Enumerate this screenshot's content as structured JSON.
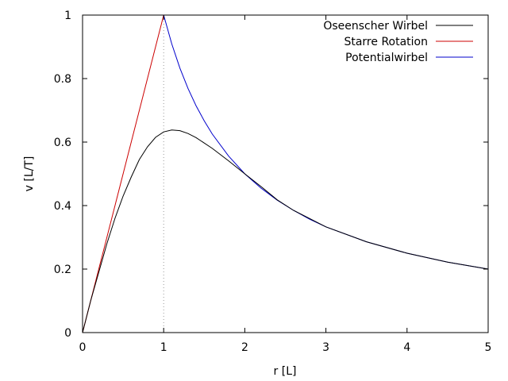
{
  "chart_data": {
    "type": "line",
    "xlabel": "r [L]",
    "ylabel": "v [L/T]",
    "xlim": [
      0,
      5
    ],
    "ylim": [
      0,
      1
    ],
    "x_ticks": [
      "0",
      "1",
      "2",
      "3",
      "4",
      "5"
    ],
    "y_ticks": [
      "0",
      "0.2",
      "0.4",
      "0.6",
      "0.8",
      "1"
    ],
    "grid": false,
    "legend_position": "top-right",
    "reference_line": {
      "x": 1,
      "style": "dotted",
      "color": "#9a9a9a"
    },
    "series": [
      {
        "name": "Oseenscher Wirbel",
        "color": "#000000",
        "points": [
          [
            0,
            0
          ],
          [
            0.1,
            0.1
          ],
          [
            0.2,
            0.19
          ],
          [
            0.3,
            0.28
          ],
          [
            0.4,
            0.36
          ],
          [
            0.5,
            0.43
          ],
          [
            0.6,
            0.49
          ],
          [
            0.7,
            0.545
          ],
          [
            0.8,
            0.585
          ],
          [
            0.9,
            0.615
          ],
          [
            1.0,
            0.632
          ],
          [
            1.1,
            0.638
          ],
          [
            1.2,
            0.636
          ],
          [
            1.3,
            0.627
          ],
          [
            1.4,
            0.614
          ],
          [
            1.6,
            0.58
          ],
          [
            1.8,
            0.541
          ],
          [
            2.0,
            0.5
          ],
          [
            2.2,
            0.46
          ],
          [
            2.4,
            0.418
          ],
          [
            2.6,
            0.385
          ],
          [
            3.0,
            0.333
          ],
          [
            3.5,
            0.286
          ],
          [
            4.0,
            0.25
          ],
          [
            4.5,
            0.222
          ],
          [
            5.0,
            0.2
          ]
        ]
      },
      {
        "name": "Starre Rotation",
        "color": "#cc0000",
        "points": [
          [
            0,
            0
          ],
          [
            1,
            1
          ]
        ]
      },
      {
        "name": "Potentialwirbel",
        "color": "#0000cc",
        "points": [
          [
            1.0,
            1.0
          ],
          [
            1.1,
            0.909
          ],
          [
            1.2,
            0.833
          ],
          [
            1.3,
            0.769
          ],
          [
            1.4,
            0.714
          ],
          [
            1.5,
            0.667
          ],
          [
            1.6,
            0.625
          ],
          [
            1.8,
            0.556
          ],
          [
            2.0,
            0.5
          ],
          [
            2.2,
            0.455
          ],
          [
            2.4,
            0.417
          ],
          [
            2.6,
            0.385
          ],
          [
            2.8,
            0.357
          ],
          [
            3.0,
            0.333
          ],
          [
            3.5,
            0.286
          ],
          [
            4.0,
            0.25
          ],
          [
            4.5,
            0.222
          ],
          [
            5.0,
            0.2
          ]
        ]
      }
    ]
  }
}
